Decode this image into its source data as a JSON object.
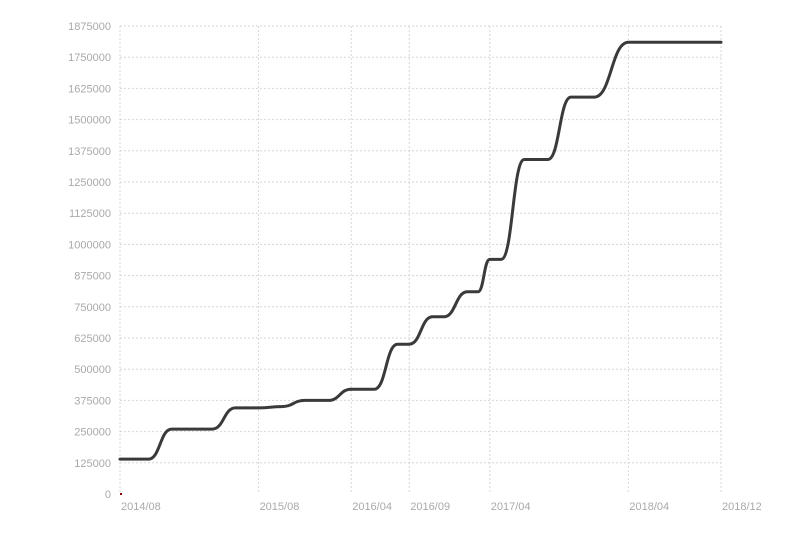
{
  "chart_data": {
    "type": "line",
    "title": "",
    "xlabel": "",
    "ylabel": "",
    "ylim": [
      0,
      1875000
    ],
    "yticks": [
      0,
      125000,
      250000,
      375000,
      500000,
      625000,
      750000,
      875000,
      1000000,
      1125000,
      1250000,
      1375000,
      1500000,
      1625000,
      1750000,
      1875000
    ],
    "ytick_labels": [
      "0",
      "125000",
      "250000",
      "375000",
      "500000",
      "625000",
      "750000",
      "875000",
      "1000000",
      "1125000",
      "1250000",
      "1375000",
      "1500000",
      "1625000",
      "1750000",
      "1875000"
    ],
    "xlim": [
      "2014-08-01",
      "2018-12-01"
    ],
    "xticks": [
      "2014-08-01",
      "2015-08-01",
      "2016-04-01",
      "2016-09-01",
      "2017-04-01",
      "2018-04-01",
      "2018-12-01"
    ],
    "xtick_labels": [
      "2014/08",
      "2015/08",
      "2016/04",
      "2016/09",
      "2017/04",
      "2018/04",
      "2018/12"
    ],
    "grid": true,
    "line_color": "#3a3a3a",
    "series": [
      {
        "x": [
          "2014-08-01",
          "2014-10-15",
          "2014-12-15",
          "2015-04-01",
          "2015-06-01",
          "2015-08-01",
          "2015-10-01",
          "2015-12-01",
          "2016-02-01",
          "2016-04-01",
          "2016-06-01",
          "2016-08-01",
          "2016-09-01",
          "2016-11-01",
          "2016-12-01",
          "2017-02-01",
          "2017-03-01",
          "2017-04-01",
          "2017-05-01",
          "2017-07-01",
          "2017-09-01",
          "2017-11-01",
          "2018-01-01",
          "2018-04-01",
          "2018-06-01",
          "2018-08-01",
          "2018-12-01"
        ],
        "y": [
          140000,
          140000,
          260000,
          260000,
          345000,
          345000,
          350000,
          375000,
          375000,
          420000,
          420000,
          600000,
          600000,
          710000,
          710000,
          810000,
          810000,
          940000,
          940000,
          1340000,
          1340000,
          1590000,
          1590000,
          1810000,
          1810000,
          1810000,
          1810000
        ]
      }
    ]
  }
}
